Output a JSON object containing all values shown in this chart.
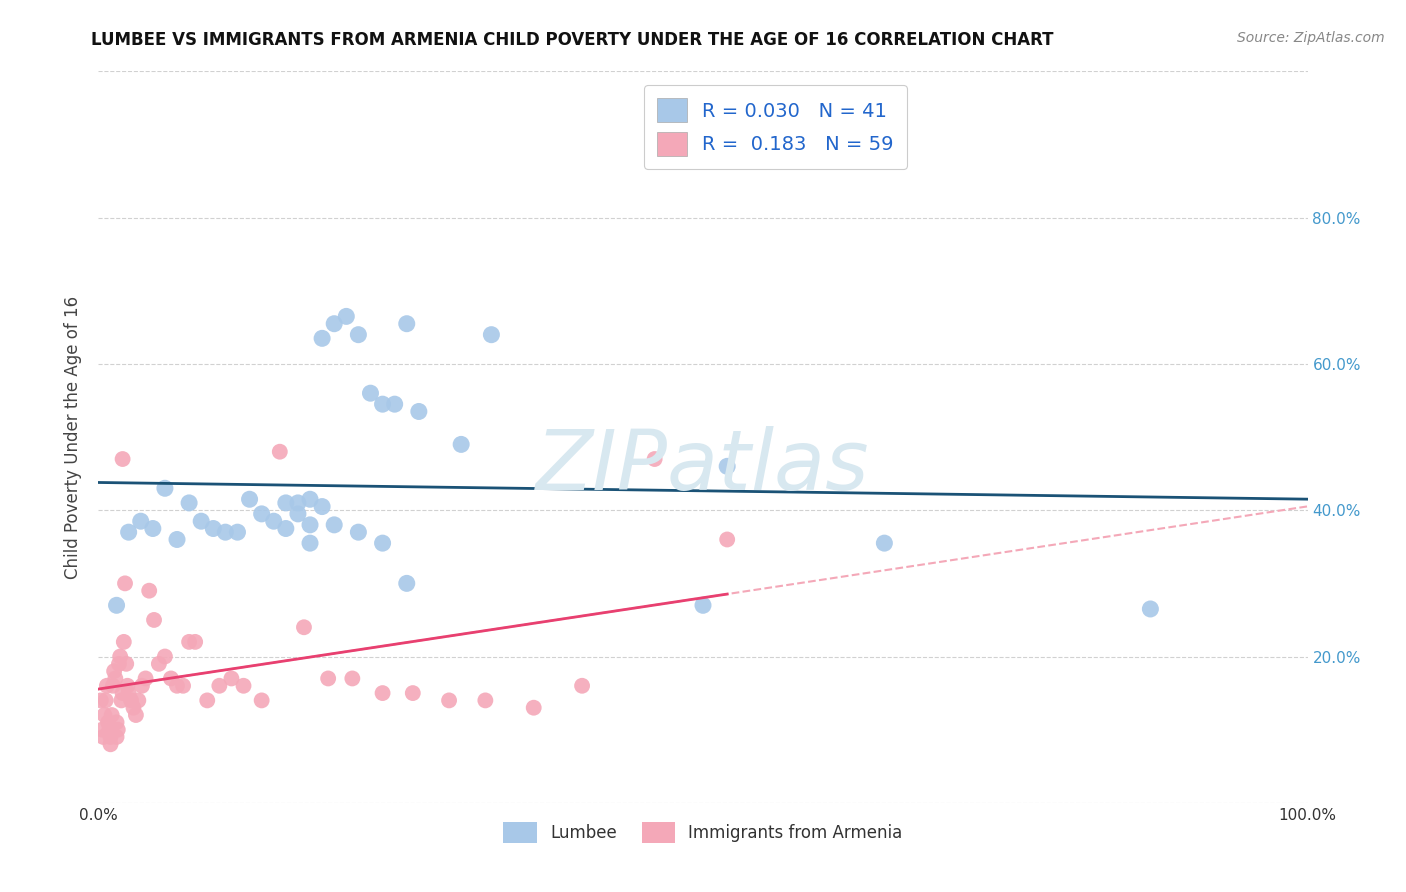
{
  "title": "LUMBEE VS IMMIGRANTS FROM ARMENIA CHILD POVERTY UNDER THE AGE OF 16 CORRELATION CHART",
  "source": "Source: ZipAtlas.com",
  "ylabel": "Child Poverty Under the Age of 16",
  "xlim": [
    0,
    1.0
  ],
  "ylim": [
    0,
    1.0
  ],
  "lumbee_R": "0.030",
  "lumbee_N": "41",
  "armenia_R": "0.183",
  "armenia_N": "59",
  "lumbee_color": "#a8c8e8",
  "armenia_color": "#f4a8b8",
  "lumbee_line_color": "#1a5276",
  "armenia_line_color": "#e84070",
  "armenia_dash_color": "#f4a8b8",
  "legend_label_color": "#2266cc",
  "watermark_color": "#d8e8f0",
  "watermark_text": "ZIPatlas",
  "lumbee_x": [
    0.015,
    0.025,
    0.035,
    0.045,
    0.055,
    0.065,
    0.075,
    0.085,
    0.095,
    0.105,
    0.115,
    0.125,
    0.135,
    0.145,
    0.155,
    0.155,
    0.165,
    0.175,
    0.175,
    0.185,
    0.195,
    0.205,
    0.215,
    0.225,
    0.235,
    0.245,
    0.255,
    0.265,
    0.165,
    0.175,
    0.185,
    0.195,
    0.215,
    0.235,
    0.255,
    0.3,
    0.325,
    0.5,
    0.52,
    0.65,
    0.87
  ],
  "lumbee_y": [
    0.27,
    0.37,
    0.385,
    0.375,
    0.43,
    0.36,
    0.41,
    0.385,
    0.375,
    0.37,
    0.37,
    0.415,
    0.395,
    0.385,
    0.375,
    0.41,
    0.395,
    0.38,
    0.355,
    0.635,
    0.655,
    0.665,
    0.64,
    0.56,
    0.545,
    0.545,
    0.655,
    0.535,
    0.41,
    0.415,
    0.405,
    0.38,
    0.37,
    0.355,
    0.3,
    0.49,
    0.64,
    0.27,
    0.46,
    0.355,
    0.265
  ],
  "armenia_x": [
    0.002,
    0.003,
    0.004,
    0.005,
    0.006,
    0.007,
    0.008,
    0.009,
    0.01,
    0.01,
    0.011,
    0.012,
    0.013,
    0.014,
    0.015,
    0.015,
    0.016,
    0.017,
    0.018,
    0.019,
    0.02,
    0.021,
    0.022,
    0.023,
    0.024,
    0.025,
    0.027,
    0.029,
    0.031,
    0.033,
    0.036,
    0.039,
    0.042,
    0.046,
    0.05,
    0.055,
    0.06,
    0.065,
    0.07,
    0.075,
    0.08,
    0.09,
    0.1,
    0.11,
    0.12,
    0.135,
    0.15,
    0.17,
    0.19,
    0.21,
    0.235,
    0.26,
    0.29,
    0.32,
    0.36,
    0.4,
    0.46,
    0.52,
    0.02
  ],
  "armenia_y": [
    0.14,
    0.1,
    0.09,
    0.12,
    0.14,
    0.16,
    0.11,
    0.1,
    0.08,
    0.09,
    0.12,
    0.16,
    0.18,
    0.17,
    0.09,
    0.11,
    0.1,
    0.19,
    0.2,
    0.14,
    0.15,
    0.22,
    0.3,
    0.19,
    0.16,
    0.15,
    0.14,
    0.13,
    0.12,
    0.14,
    0.16,
    0.17,
    0.29,
    0.25,
    0.19,
    0.2,
    0.17,
    0.16,
    0.16,
    0.22,
    0.22,
    0.14,
    0.16,
    0.17,
    0.16,
    0.14,
    0.48,
    0.24,
    0.17,
    0.17,
    0.15,
    0.15,
    0.14,
    0.14,
    0.13,
    0.16,
    0.47,
    0.36,
    0.47
  ]
}
